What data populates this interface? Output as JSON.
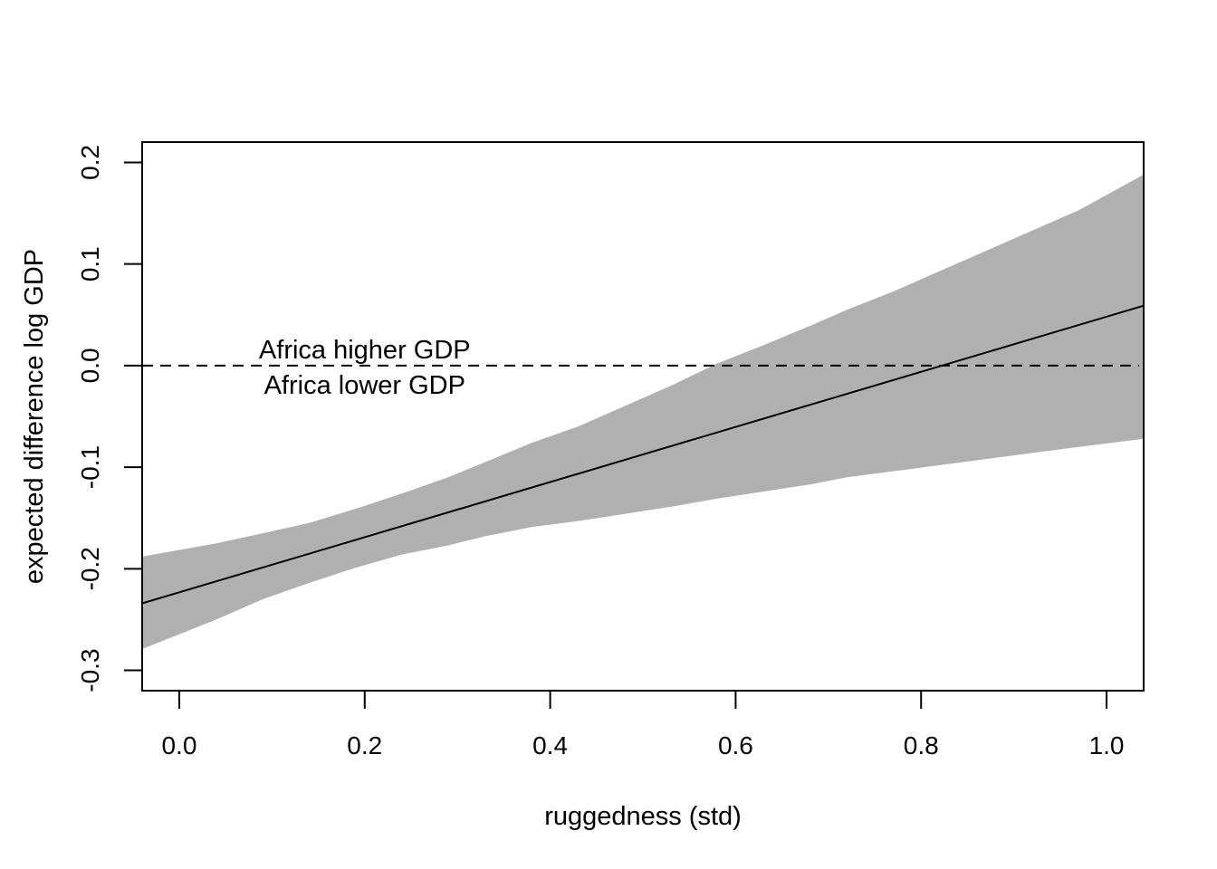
{
  "chart_data": {
    "type": "line",
    "title": "",
    "xlabel": "ruggedness (std)",
    "ylabel": "expected difference log GDP",
    "xlim": [
      -0.04,
      1.04
    ],
    "ylim": [
      -0.32,
      0.22
    ],
    "xticks": [
      0.0,
      0.2,
      0.4,
      0.6,
      0.8,
      1.0
    ],
    "xtick_labels": [
      "0.0",
      "0.2",
      "0.4",
      "0.6",
      "0.8",
      "1.0"
    ],
    "yticks": [
      -0.3,
      -0.2,
      -0.1,
      0.0,
      0.1,
      0.2
    ],
    "ytick_labels": [
      "-0.3",
      "-0.2",
      "-0.1",
      "0.0",
      "0.1",
      "0.2"
    ],
    "grid": false,
    "series": [
      {
        "kind": "mean_line",
        "color": "#000000",
        "x": [
          -0.04,
          1.04
        ],
        "y": [
          -0.234,
          0.059
        ]
      }
    ],
    "interval": {
      "color": "#b0b0b0",
      "x": [
        -0.04,
        0.04,
        0.09,
        0.14,
        0.19,
        0.24,
        0.29,
        0.33,
        0.38,
        0.43,
        0.48,
        0.53,
        0.58,
        0.63,
        0.68,
        0.72,
        0.77,
        0.82,
        0.87,
        0.92,
        0.97,
        1.04
      ],
      "upper": [
        -0.188,
        -0.175,
        -0.165,
        -0.155,
        -0.141,
        -0.126,
        -0.11,
        -0.095,
        -0.076,
        -0.06,
        -0.04,
        -0.02,
        0.002,
        0.02,
        0.039,
        0.055,
        0.073,
        0.093,
        0.113,
        0.133,
        0.153,
        0.188
      ],
      "lower": [
        -0.279,
        -0.25,
        -0.23,
        -0.214,
        -0.199,
        -0.186,
        -0.177,
        -0.168,
        -0.159,
        -0.153,
        -0.146,
        -0.139,
        -0.131,
        -0.124,
        -0.117,
        -0.11,
        -0.104,
        -0.098,
        -0.092,
        -0.086,
        -0.08,
        -0.072
      ]
    },
    "reference_line": {
      "y": 0.0,
      "style": "dashed",
      "color": "#000000"
    },
    "annotations": [
      {
        "text": "Africa higher GDP",
        "x": 0.2,
        "y": 0.0,
        "side": "above"
      },
      {
        "text": "Africa lower GDP",
        "x": 0.2,
        "y": 0.0,
        "side": "below"
      }
    ]
  }
}
